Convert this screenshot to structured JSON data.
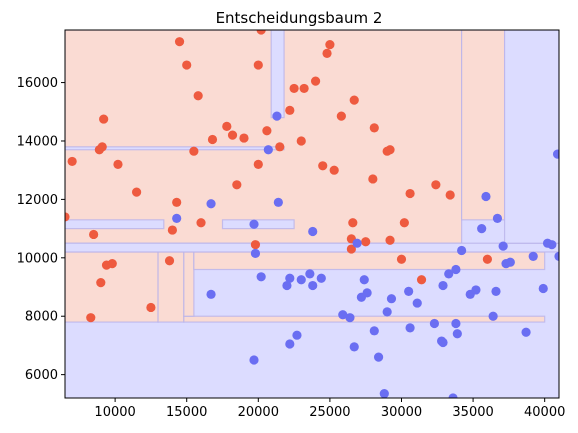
{
  "chart_data": {
    "type": "scatter",
    "title": "Entscheidungsbaum 2",
    "xlabel": "",
    "ylabel": "",
    "xlim": [
      6500,
      41000
    ],
    "ylim": [
      5200,
      17800
    ],
    "xticks": [
      10000,
      15000,
      20000,
      25000,
      30000,
      35000,
      40000
    ],
    "yticks": [
      6000,
      8000,
      10000,
      12000,
      14000,
      16000
    ],
    "grid": false,
    "colors": {
      "class_red_point": "#ee5a3f",
      "class_blue_point": "#6a6ef2",
      "region_red": "#fadbd3",
      "region_blue": "#dcdcff",
      "region_edge": "#b9b3ea"
    },
    "decision_regions": {
      "background_class": "blue",
      "regions": [
        {
          "class": "red",
          "x": [
            6500,
            13000
          ],
          "y": [
            7800,
            10200
          ]
        },
        {
          "class": "red",
          "x": [
            13000,
            14800
          ],
          "y": [
            7800,
            10200
          ]
        },
        {
          "class": "red",
          "x": [
            14800,
            40000
          ],
          "y": [
            7800,
            8000
          ]
        },
        {
          "class": "red",
          "x": [
            14800,
            15500
          ],
          "y": [
            8000,
            10200
          ]
        },
        {
          "class": "red",
          "x": [
            15500,
            40000
          ],
          "y": [
            9600,
            10200
          ]
        },
        {
          "class": "red",
          "x": [
            6500,
            34200
          ],
          "y": [
            10500,
            17800
          ]
        },
        {
          "class": "red",
          "x": [
            34200,
            37200
          ],
          "y": [
            11300,
            17800
          ]
        },
        {
          "class": "blue",
          "x": [
            6500,
            41000
          ],
          "y": [
            10200,
            10500
          ]
        },
        {
          "class": "blue",
          "x": [
            6500,
            13400
          ],
          "y": [
            11000,
            11300
          ]
        },
        {
          "class": "blue",
          "x": [
            17500,
            22500
          ],
          "y": [
            11000,
            11300
          ]
        },
        {
          "class": "blue",
          "x": [
            6500,
            21800
          ],
          "y": [
            13700,
            13800
          ]
        },
        {
          "class": "blue",
          "x": [
            20900,
            21800
          ],
          "y": [
            14800,
            17800
          ]
        },
        {
          "class": "blue",
          "x": [
            37200,
            41000
          ],
          "y": [
            10500,
            17800
          ]
        }
      ]
    },
    "series": [
      {
        "class": "red",
        "points": [
          [
            6500,
            11400
          ],
          [
            7000,
            13300
          ],
          [
            8500,
            10800
          ],
          [
            8300,
            7950
          ],
          [
            8900,
            13700
          ],
          [
            9100,
            13800
          ],
          [
            9200,
            14750
          ],
          [
            9400,
            9750
          ],
          [
            9000,
            9150
          ],
          [
            9800,
            9800
          ],
          [
            10200,
            13200
          ],
          [
            11500,
            12250
          ],
          [
            12500,
            8300
          ],
          [
            13800,
            9900
          ],
          [
            14000,
            10950
          ],
          [
            14300,
            11900
          ],
          [
            14500,
            17400
          ],
          [
            15000,
            16600
          ],
          [
            15500,
            13650
          ],
          [
            15800,
            15550
          ],
          [
            16000,
            11200
          ],
          [
            16800,
            14050
          ],
          [
            17800,
            14500
          ],
          [
            18200,
            14200
          ],
          [
            18500,
            12500
          ],
          [
            19000,
            14100
          ],
          [
            19800,
            10450
          ],
          [
            20000,
            13200
          ],
          [
            20000,
            16600
          ],
          [
            20200,
            17800
          ],
          [
            20600,
            14350
          ],
          [
            21500,
            13800
          ],
          [
            22200,
            15050
          ],
          [
            22500,
            15800
          ],
          [
            23000,
            14000
          ],
          [
            23200,
            15800
          ],
          [
            24000,
            16050
          ],
          [
            24500,
            13150
          ],
          [
            24800,
            17000
          ],
          [
            25000,
            17300
          ],
          [
            25300,
            13000
          ],
          [
            25800,
            14850
          ],
          [
            26500,
            10300
          ],
          [
            26500,
            10650
          ],
          [
            26600,
            11200
          ],
          [
            26700,
            15400
          ],
          [
            27500,
            10550
          ],
          [
            28000,
            12700
          ],
          [
            28100,
            14450
          ],
          [
            29000,
            13650
          ],
          [
            29200,
            13700
          ],
          [
            29200,
            10600
          ],
          [
            30000,
            9950
          ],
          [
            30200,
            11200
          ],
          [
            30600,
            12200
          ],
          [
            31400,
            9250
          ],
          [
            32400,
            12500
          ],
          [
            33400,
            12150
          ],
          [
            36000,
            9950
          ]
        ]
      },
      {
        "class": "blue",
        "points": [
          [
            14300,
            11350
          ],
          [
            16700,
            11850
          ],
          [
            16700,
            8750
          ],
          [
            19800,
            10150
          ],
          [
            19700,
            11150
          ],
          [
            19700,
            6500
          ],
          [
            20200,
            9350
          ],
          [
            20700,
            13700
          ],
          [
            21300,
            14850
          ],
          [
            21400,
            11900
          ],
          [
            22000,
            9050
          ],
          [
            22200,
            9300
          ],
          [
            22200,
            7050
          ],
          [
            22700,
            7350
          ],
          [
            23000,
            9250
          ],
          [
            23600,
            9450
          ],
          [
            23800,
            9050
          ],
          [
            23800,
            10900
          ],
          [
            24400,
            9300
          ],
          [
            25900,
            8050
          ],
          [
            26400,
            7950
          ],
          [
            26700,
            6950
          ],
          [
            26900,
            10500
          ],
          [
            27200,
            8650
          ],
          [
            27400,
            9250
          ],
          [
            27600,
            8800
          ],
          [
            28100,
            7500
          ],
          [
            28400,
            6600
          ],
          [
            28800,
            5350
          ],
          [
            29000,
            8150
          ],
          [
            29300,
            8600
          ],
          [
            30500,
            8850
          ],
          [
            30600,
            7600
          ],
          [
            31100,
            8450
          ],
          [
            32300,
            7750
          ],
          [
            32800,
            7150
          ],
          [
            32900,
            9050
          ],
          [
            32900,
            7100
          ],
          [
            33300,
            9450
          ],
          [
            33600,
            5200
          ],
          [
            33800,
            9600
          ],
          [
            33800,
            7750
          ],
          [
            33900,
            7400
          ],
          [
            34200,
            10250
          ],
          [
            34800,
            8750
          ],
          [
            35200,
            8900
          ],
          [
            35600,
            11000
          ],
          [
            35900,
            12100
          ],
          [
            36400,
            8000
          ],
          [
            36600,
            8850
          ],
          [
            36700,
            11350
          ],
          [
            37100,
            10400
          ],
          [
            37300,
            9800
          ],
          [
            37600,
            9850
          ],
          [
            38700,
            7450
          ],
          [
            39200,
            10050
          ],
          [
            39900,
            8950
          ],
          [
            40200,
            10500
          ],
          [
            40500,
            10450
          ],
          [
            40900,
            13550
          ],
          [
            41000,
            10050
          ]
        ]
      }
    ]
  }
}
